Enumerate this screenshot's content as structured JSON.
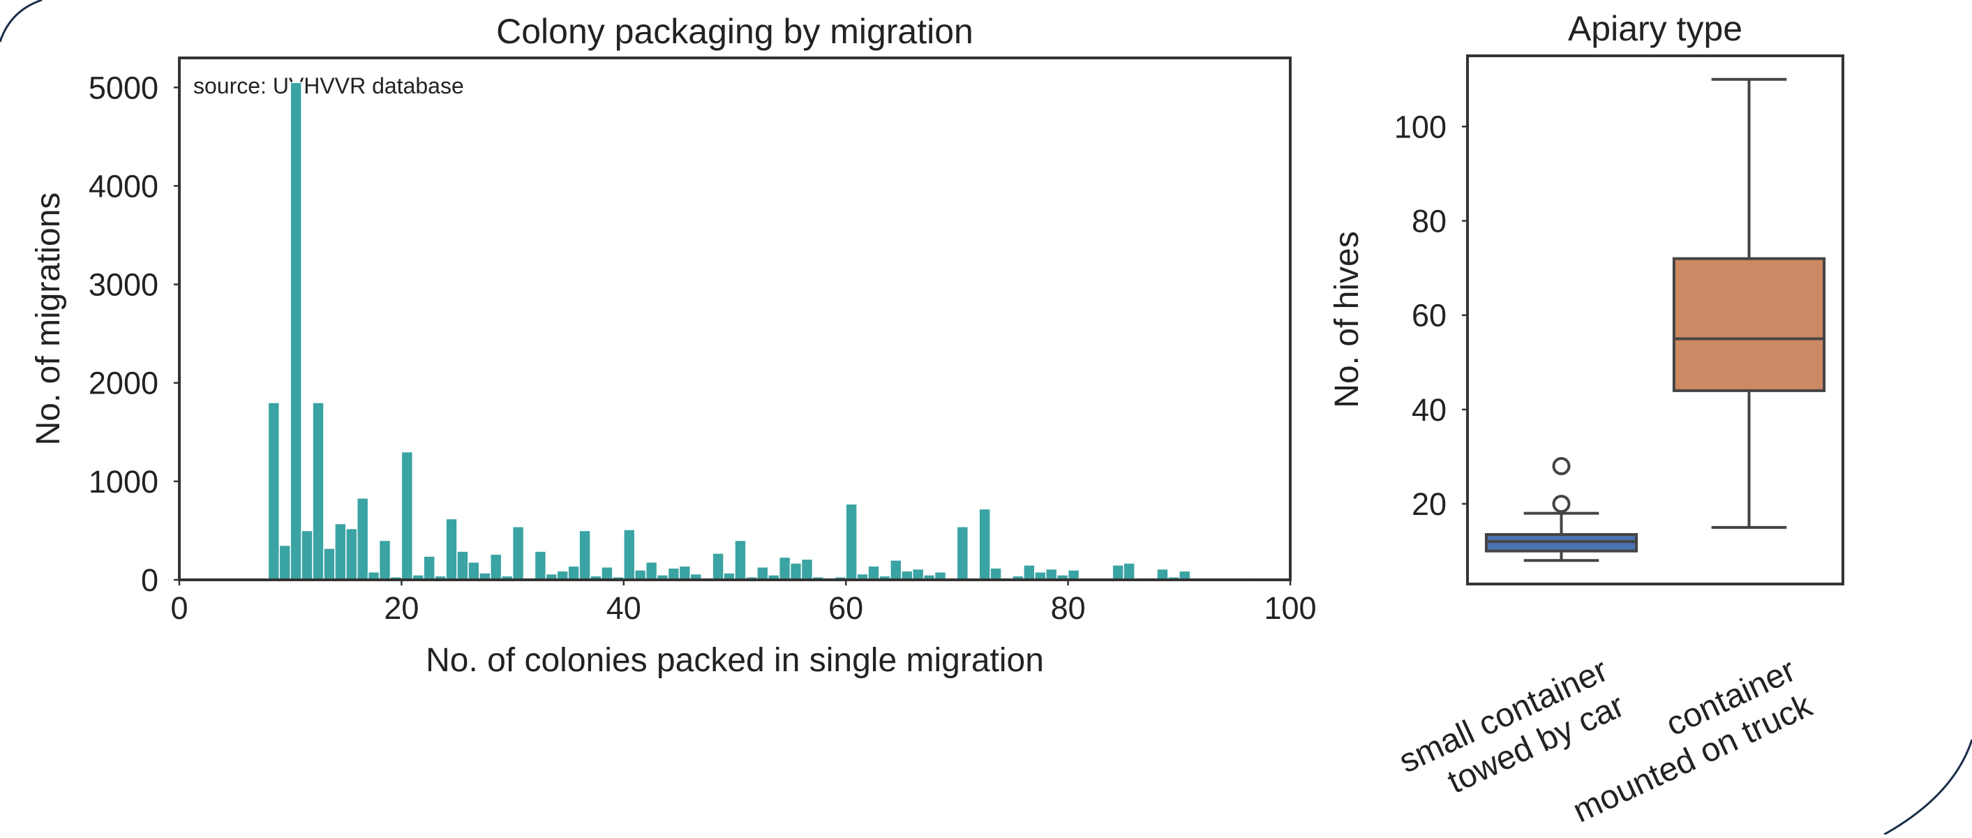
{
  "chart_data": [
    {
      "type": "bar",
      "title": "Colony packaging by migration",
      "xlabel": "No. of colonies packed in single migration",
      "ylabel": "No. of migrations",
      "xlim": [
        0,
        100
      ],
      "ylim": [
        0,
        5300
      ],
      "xticks": [
        0,
        20,
        40,
        60,
        80,
        100
      ],
      "yticks": [
        0,
        1000,
        2000,
        3000,
        4000,
        5000
      ],
      "annotation": "source: UVHVVR database",
      "grid": false,
      "color": "#3aa3a3",
      "bins": {
        "x": [
          8,
          9,
          10,
          11,
          12,
          13,
          14,
          15,
          16,
          17,
          18,
          19,
          20,
          21,
          22,
          23,
          24,
          25,
          26,
          27,
          28,
          29,
          30,
          31,
          32,
          33,
          34,
          35,
          36,
          37,
          38,
          39,
          40,
          41,
          42,
          43,
          44,
          45,
          46,
          47,
          48,
          49,
          50,
          51,
          52,
          53,
          54,
          55,
          56,
          57,
          58,
          59,
          60,
          61,
          62,
          63,
          64,
          65,
          66,
          67,
          68,
          69,
          70,
          71,
          72,
          73,
          74,
          75,
          76,
          77,
          78,
          79,
          80,
          81,
          82,
          83,
          84,
          85,
          86,
          87,
          88,
          89,
          90,
          91,
          92,
          93,
          94,
          95,
          96
        ],
        "values": [
          1800,
          350,
          5050,
          500,
          1800,
          320,
          570,
          520,
          830,
          80,
          400,
          30,
          1300,
          50,
          240,
          40,
          620,
          290,
          180,
          70,
          260,
          40,
          540,
          20,
          290,
          60,
          90,
          140,
          500,
          40,
          130,
          30,
          510,
          100,
          180,
          50,
          120,
          140,
          60,
          0,
          270,
          70,
          400,
          30,
          130,
          50,
          230,
          170,
          210,
          30,
          20,
          30,
          770,
          60,
          140,
          40,
          200,
          90,
          110,
          50,
          80,
          0,
          540,
          20,
          720,
          120,
          20,
          40,
          150,
          80,
          110,
          50,
          100,
          20,
          20,
          20,
          150,
          170,
          0,
          20,
          110,
          30,
          90,
          0,
          0,
          0,
          0,
          0,
          20
        ]
      }
    },
    {
      "type": "box",
      "title": "Apiary type",
      "ylabel": "No. of hives",
      "ylim": [
        3,
        115
      ],
      "yticks": [
        20,
        40,
        60,
        80,
        100
      ],
      "grid": false,
      "categories": [
        "small container\ntowed by car",
        "container\nmounted on truck"
      ],
      "boxes": [
        {
          "whislo": 8,
          "q1": 10,
          "med": 12,
          "q3": 13.5,
          "whishi": 18,
          "fliers": [
            20,
            28
          ],
          "color": "#4c72b0"
        },
        {
          "whislo": 15,
          "q1": 44,
          "med": 55,
          "q3": 72,
          "whishi": 110,
          "fliers": [],
          "color": "#cc8963"
        }
      ]
    }
  ]
}
